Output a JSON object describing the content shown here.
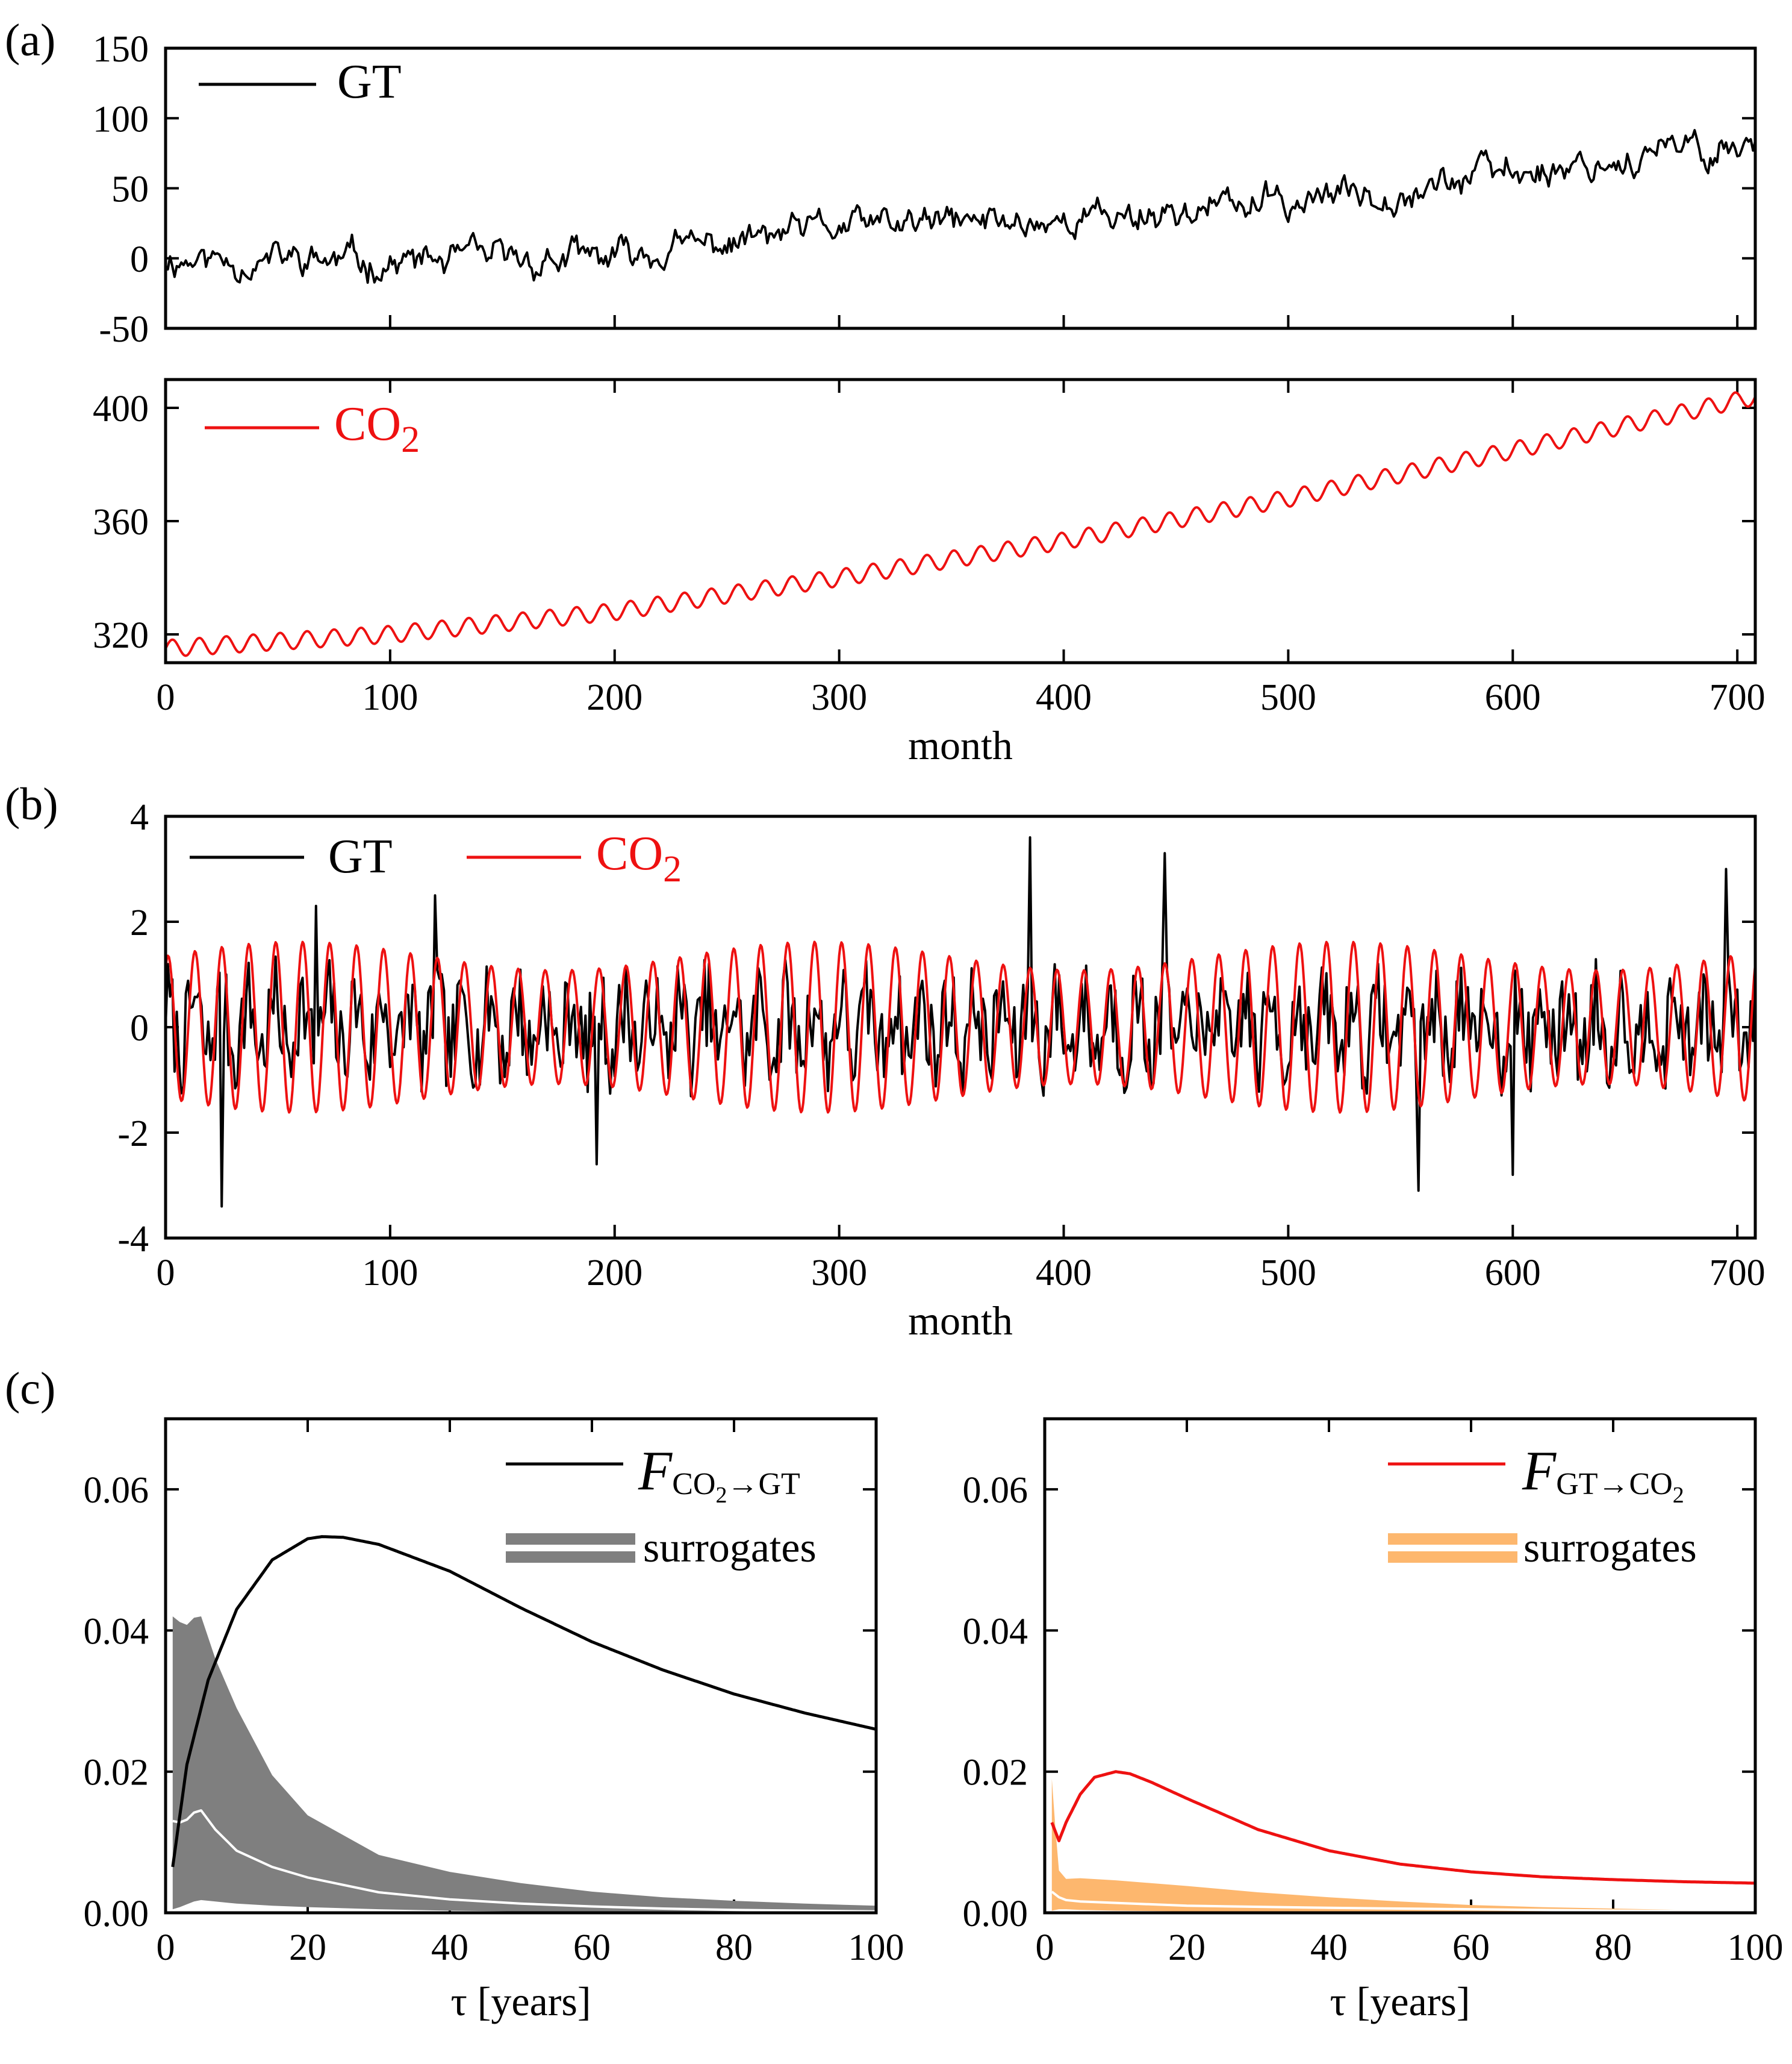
{
  "panel_labels": [
    "(a)",
    "(b)",
    "(c)"
  ],
  "chart_data": [
    {
      "id": "a-top",
      "type": "line",
      "title": "",
      "xlabel": "",
      "ylabel": "",
      "xlim": [
        0,
        708
      ],
      "ylim": [
        -50,
        150
      ],
      "xticks": [
        0,
        100,
        200,
        300,
        400,
        500,
        600,
        700
      ],
      "yticks": [
        -50,
        0,
        50,
        100,
        150
      ],
      "ytick_labels": [
        "-50",
        "0",
        "50",
        "100",
        "150"
      ],
      "legend": {
        "position": "top-left",
        "entries": [
          {
            "label": "GT",
            "color": "#000000"
          }
        ]
      },
      "series": [
        {
          "name": "GT",
          "color": "#000000",
          "generator": "noisy_trend",
          "trend_x": [
            0,
            100,
            200,
            300,
            400,
            500,
            600,
            708
          ],
          "trend_y": [
            0,
            -3,
            0,
            22,
            28,
            40,
            62,
            82
          ],
          "noise": 13,
          "seed": 11
        }
      ]
    },
    {
      "id": "a-bottom",
      "type": "line",
      "title": "",
      "xlabel": "month",
      "ylabel": "",
      "xlim": [
        0,
        708
      ],
      "ylim": [
        310,
        410
      ],
      "xticks": [
        0,
        100,
        200,
        300,
        400,
        500,
        600,
        700
      ],
      "xtick_labels": [
        "0",
        "100",
        "200",
        "300",
        "400",
        "500",
        "600",
        "700"
      ],
      "yticks": [
        320,
        360,
        400
      ],
      "ytick_labels": [
        "320",
        "360",
        "400"
      ],
      "legend": {
        "position": "top-left",
        "entries": [
          {
            "label": "CO",
            "sub": "2",
            "color": "#ee1111"
          }
        ]
      },
      "series": [
        {
          "name": "CO2",
          "color": "#ee1111",
          "generator": "seasonal_trend",
          "trend_x": [
            0,
            100,
            200,
            300,
            400,
            500,
            600,
            708
          ],
          "trend_y": [
            315,
            320,
            328,
            340,
            353,
            368,
            385,
            404
          ],
          "amplitude": 3,
          "period": 12
        }
      ]
    },
    {
      "id": "b",
      "type": "line",
      "title": "",
      "xlabel": "month",
      "ylabel": "",
      "xlim": [
        0,
        708
      ],
      "ylim": [
        -4,
        4
      ],
      "xticks": [
        0,
        100,
        200,
        300,
        400,
        500,
        600,
        700
      ],
      "xtick_labels": [
        "0",
        "100",
        "200",
        "300",
        "400",
        "500",
        "600",
        "700"
      ],
      "yticks": [
        -4,
        -2,
        0,
        2,
        4
      ],
      "ytick_labels": [
        "-4",
        "-2",
        "0",
        "2",
        "4"
      ],
      "legend": {
        "position": "top-left",
        "entries": [
          {
            "label": "GT",
            "color": "#000000"
          },
          {
            "label": "CO",
            "sub": "2",
            "color": "#ee1111"
          }
        ]
      },
      "series": [
        {
          "name": "GT",
          "color": "#000000",
          "generator": "noise",
          "noise": 0.85,
          "seed": 7,
          "spikes": [
            [
              25,
              -3.4
            ],
            [
              67,
              2.3
            ],
            [
              120,
              2.5
            ],
            [
              192,
              -2.6
            ],
            [
              385,
              3.6
            ],
            [
              445,
              3.3
            ],
            [
              558,
              -3.1
            ],
            [
              600,
              -2.8
            ],
            [
              695,
              3.0
            ]
          ]
        },
        {
          "name": "CO2",
          "color": "#ee1111",
          "generator": "sine",
          "amplitude": 1.5,
          "period": 12
        }
      ]
    },
    {
      "id": "c-left",
      "type": "line",
      "title": "",
      "xlabel": "τ [years]",
      "ylabel": "",
      "xlim": [
        0,
        100
      ],
      "ylim": [
        0,
        0.07
      ],
      "xticks": [
        0,
        20,
        40,
        60,
        80,
        100
      ],
      "xtick_labels": [
        "0",
        "20",
        "40",
        "60",
        "80",
        "100"
      ],
      "yticks": [
        0,
        0.02,
        0.04,
        0.06
      ],
      "ytick_labels": [
        "0.00",
        "0.02",
        "0.04",
        "0.06"
      ],
      "legend": {
        "position": "top-right",
        "line_main": "F",
        "line_sub": "CO2→GT",
        "line_sub_parts": [
          "CO",
          "2",
          "→GT"
        ],
        "band_label": "surrogates"
      },
      "main_line": {
        "color": "#000000",
        "x": [
          1,
          3,
          6,
          10,
          15,
          20,
          22,
          25,
          30,
          40,
          50,
          60,
          70,
          80,
          90,
          100
        ],
        "y": [
          0.0065,
          0.021,
          0.033,
          0.043,
          0.05,
          0.053,
          0.0533,
          0.0532,
          0.0522,
          0.0484,
          0.0432,
          0.0384,
          0.0344,
          0.031,
          0.0283,
          0.026
        ]
      },
      "band": {
        "color": "#7f7f7f",
        "x": [
          1,
          2,
          3,
          4,
          5,
          7,
          10,
          15,
          20,
          30,
          40,
          50,
          60,
          70,
          80,
          90,
          100
        ],
        "upper": [
          0.042,
          0.0412,
          0.0408,
          0.0418,
          0.042,
          0.036,
          0.029,
          0.0195,
          0.0138,
          0.0082,
          0.0058,
          0.0042,
          0.003,
          0.0022,
          0.0017,
          0.0013,
          0.001
        ],
        "lower": [
          0.0005,
          0.0008,
          0.0012,
          0.0016,
          0.0018,
          0.0016,
          0.0013,
          0.001,
          0.0008,
          0.0005,
          0.0003,
          0.0002,
          0.00012,
          0.0001,
          8e-05,
          5e-05,
          3e-05
        ]
      },
      "median": {
        "color": "#ffffff",
        "x": [
          1,
          2,
          3,
          4,
          5,
          7,
          10,
          15,
          20,
          30,
          40,
          50,
          60,
          70,
          80,
          90,
          100
        ],
        "y": [
          0.013,
          0.0128,
          0.0132,
          0.0142,
          0.0145,
          0.0118,
          0.0088,
          0.0065,
          0.005,
          0.0029,
          0.0019,
          0.0013,
          0.0009,
          0.0006,
          0.0004,
          0.0003,
          0.0002
        ]
      }
    },
    {
      "id": "c-right",
      "type": "line",
      "title": "",
      "xlabel": "τ [years]",
      "ylabel": "",
      "xlim": [
        0,
        100
      ],
      "ylim": [
        0,
        0.07
      ],
      "xticks": [
        0,
        20,
        40,
        60,
        80,
        100
      ],
      "xtick_labels": [
        "0",
        "20",
        "40",
        "60",
        "80",
        "100"
      ],
      "yticks": [
        0,
        0.02,
        0.04,
        0.06
      ],
      "ytick_labels": [
        "0.00",
        "0.02",
        "0.04",
        "0.06"
      ],
      "legend": {
        "position": "top-right",
        "line_main": "F",
        "line_sub": "GT→CO2",
        "line_sub_parts": [
          "GT→CO",
          "2"
        ],
        "band_label": "surrogates"
      },
      "main_line": {
        "color": "#ee1111",
        "x": [
          1,
          2,
          3,
          5,
          7,
          10,
          12,
          15,
          20,
          30,
          40,
          50,
          60,
          70,
          80,
          90,
          100
        ],
        "y": [
          0.0128,
          0.0102,
          0.0128,
          0.0168,
          0.0192,
          0.02,
          0.0197,
          0.0185,
          0.0162,
          0.0118,
          0.0088,
          0.0069,
          0.0058,
          0.0051,
          0.0047,
          0.0044,
          0.0042
        ]
      },
      "band": {
        "color": "#fdb76e",
        "x": [
          1,
          1.5,
          2,
          3,
          5,
          10,
          20,
          30,
          40,
          50,
          60,
          70,
          80,
          90,
          100
        ],
        "upper": [
          0.019,
          0.012,
          0.006,
          0.0048,
          0.0049,
          0.0046,
          0.0038,
          0.0029,
          0.0022,
          0.0016,
          0.0011,
          0.0008,
          0.0006,
          0.0004,
          0.0003
        ],
        "lower": [
          0.0003,
          0.0004,
          0.0005,
          0.0005,
          0.0004,
          0.0003,
          0.0002,
          0.00015,
          0.0001,
          8e-05,
          6e-05,
          5e-05,
          4e-05,
          3e-05,
          2e-05
        ]
      },
      "median": {
        "color": "#ffffff",
        "x": [
          1,
          2,
          3,
          5,
          10,
          20,
          40,
          60,
          80,
          100
        ],
        "y": [
          0.003,
          0.0022,
          0.0018,
          0.0016,
          0.0014,
          0.001,
          0.0007,
          0.0005,
          0.0003,
          0.0002
        ]
      }
    }
  ]
}
